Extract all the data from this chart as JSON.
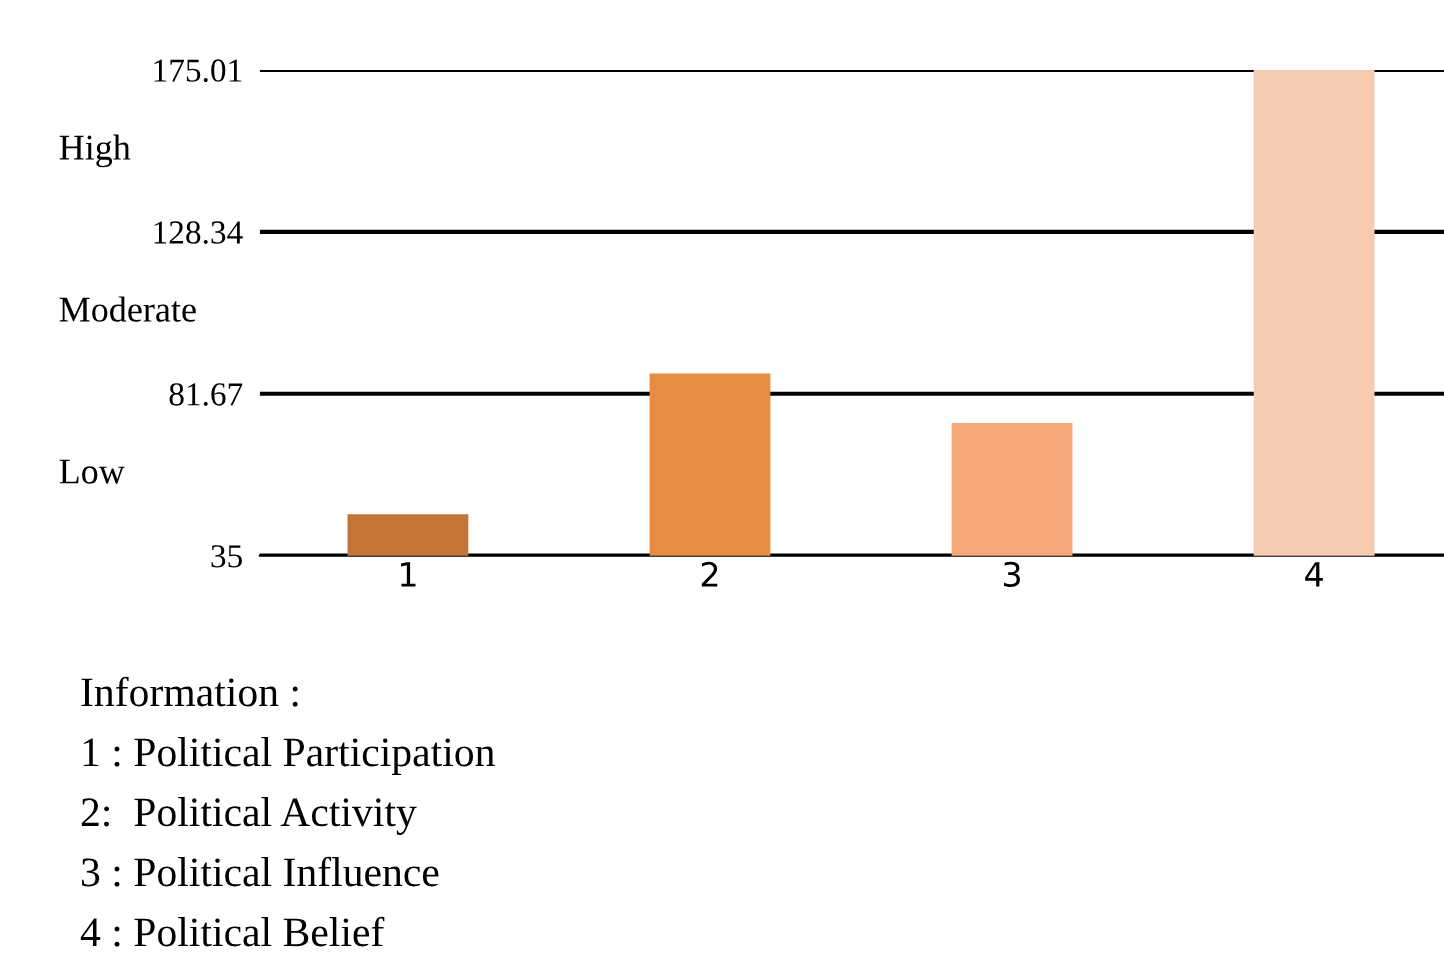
{
  "chart_data": {
    "type": "bar",
    "categories": [
      "1",
      "2",
      "3",
      "4"
    ],
    "values": [
      46.9,
      87.5,
      73.2,
      175
    ],
    "colors": [
      "#c47535",
      "#e78d42",
      "#f6a978",
      "#f7cab2"
    ],
    "ylim": [
      35,
      175.01
    ],
    "yticks": [
      35,
      81.67,
      128.34,
      175.01
    ],
    "grid": "y",
    "annotations": [
      "High",
      "Moderate",
      "Low",
      "Information :",
      "1 : Political Participation",
      "2:  Political Activity",
      "3 : Political Influence",
      "4 : Political Belief"
    ]
  }
}
